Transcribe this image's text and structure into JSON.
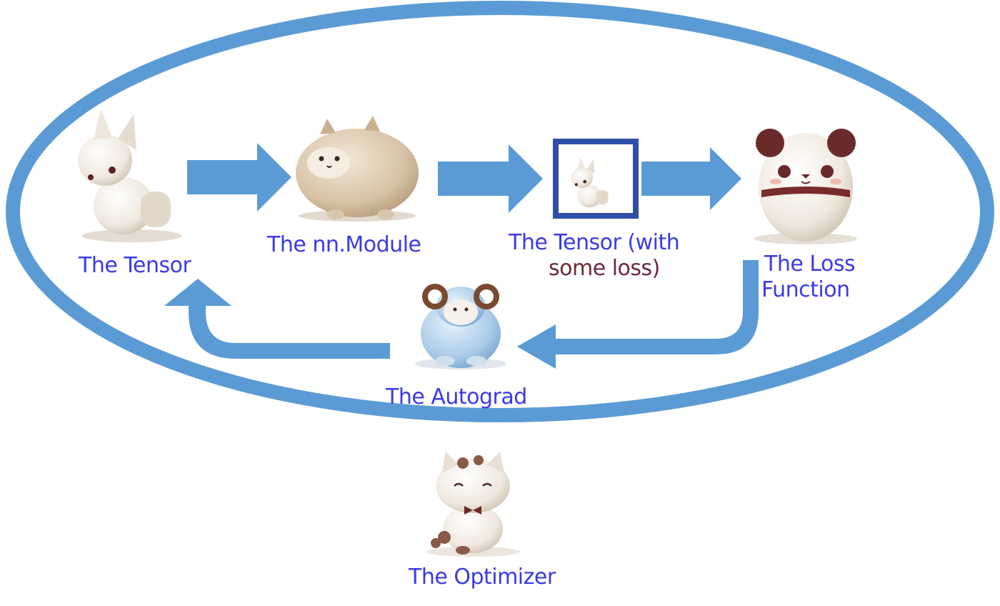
{
  "colors": {
    "cycle_ring": "#5b9bd5",
    "arrow": "#5b9bd5",
    "label_text": "#3a3ae6",
    "label_text_dark": "#6b2a3a",
    "highlight_frame": "#2e4fa8"
  },
  "nodes": {
    "tensor": {
      "label": "The Tensor",
      "icon": "plush-fox"
    },
    "module": {
      "label": "The nn.Module",
      "icon": "plush-shiba"
    },
    "tensor_loss": {
      "label_line1": "The Tensor (with",
      "label_line2": "some loss)",
      "icon": "plush-fox-small"
    },
    "loss_function": {
      "label_line1": "The Loss",
      "label_line2": "Function",
      "icon": "plush-panda"
    },
    "autograd": {
      "label": "The Autograd",
      "icon": "plush-ram"
    },
    "optimizer": {
      "label": "The Optimizer",
      "icon": "plush-cat"
    }
  }
}
